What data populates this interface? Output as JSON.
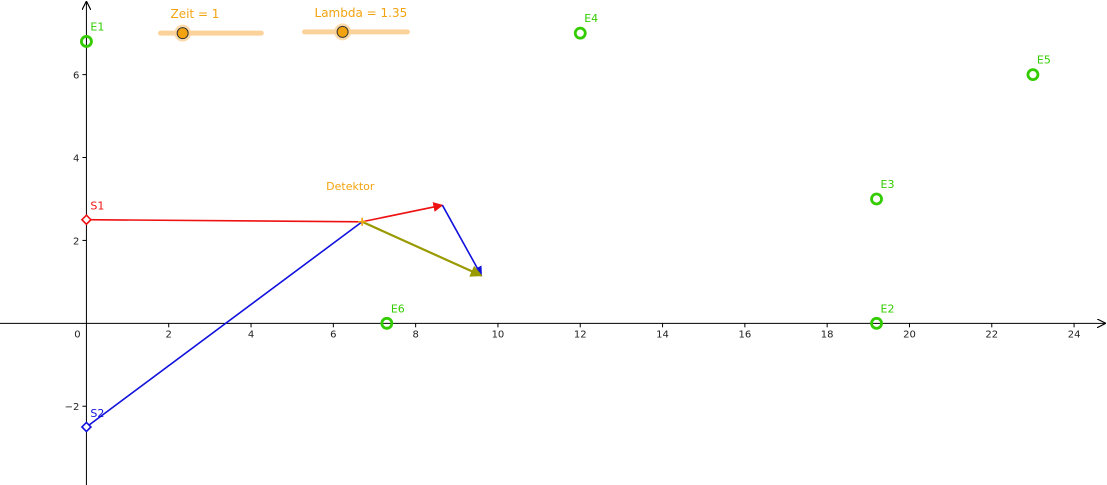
{
  "axes": {
    "x_range": [
      -2.1,
      24.8
    ],
    "y_range": [
      -3.9,
      7.8
    ],
    "x_ticks": [
      {
        "value": 0,
        "label": "0"
      },
      {
        "value": 2,
        "label": "2"
      },
      {
        "value": 4,
        "label": "4"
      },
      {
        "value": 6,
        "label": "6"
      },
      {
        "value": 8,
        "label": "8"
      },
      {
        "value": 10,
        "label": "10"
      },
      {
        "value": 12,
        "label": "12"
      },
      {
        "value": 14,
        "label": "14"
      },
      {
        "value": 16,
        "label": "16"
      },
      {
        "value": 18,
        "label": "18"
      },
      {
        "value": 20,
        "label": "20"
      },
      {
        "value": 22,
        "label": "22"
      },
      {
        "value": 24,
        "label": "24"
      }
    ],
    "y_ticks": [
      {
        "value": -2,
        "label": "−2"
      },
      {
        "value": 2,
        "label": "2"
      },
      {
        "value": 4,
        "label": "4"
      },
      {
        "value": 6,
        "label": "6"
      }
    ],
    "axis_color": "#000000"
  },
  "sliders": [
    {
      "id": "zeit",
      "label": "Zeit = 1",
      "x_start": 1.8,
      "x_end": 4.25,
      "y": 7.0,
      "fraction": 0.22,
      "color": "#f3a30f",
      "track_color": "#fbd39a"
    },
    {
      "id": "lambda",
      "label": "Lambda = 1.35",
      "x_start": 5.3,
      "x_end": 7.8,
      "y": 7.03,
      "fraction": 0.37,
      "color": "#f3a30f",
      "track_color": "#fbd39a"
    }
  ],
  "receivers": [
    {
      "name": "E1",
      "x": 0.0,
      "y": 6.8
    },
    {
      "name": "E4",
      "x": 12.0,
      "y": 7.0
    },
    {
      "name": "E5",
      "x": 23.0,
      "y": 6.0
    },
    {
      "name": "E3",
      "x": 19.2,
      "y": 3.0
    },
    {
      "name": "E2",
      "x": 19.2,
      "y": 0.0
    },
    {
      "name": "E6",
      "x": 7.3,
      "y": 0.0
    }
  ],
  "receiver_color": "#33cc00",
  "sources": [
    {
      "name": "S1",
      "x": 0.0,
      "y": 2.5,
      "color": "#ee1111"
    },
    {
      "name": "S2",
      "x": 0.0,
      "y": -2.5,
      "color": "#1111dd"
    }
  ],
  "detector": {
    "name": "Detektor",
    "x": 6.7,
    "y": 2.45,
    "color": "#f3a30f"
  },
  "segments": [
    {
      "id": "s1-line",
      "x1": 0.0,
      "y1": 2.5,
      "x2": 6.7,
      "y2": 2.45,
      "color": "#ee1111",
      "arrow": false
    },
    {
      "id": "s2-line",
      "x1": 0.0,
      "y1": -2.5,
      "x2": 6.7,
      "y2": 2.45,
      "color": "#1111dd",
      "arrow": false
    },
    {
      "id": "red-vector",
      "x1": 6.7,
      "y1": 2.45,
      "x2": 8.65,
      "y2": 2.85,
      "color": "#ee1111",
      "arrow": true
    },
    {
      "id": "blue-vector",
      "x1": 8.65,
      "y1": 2.85,
      "x2": 9.6,
      "y2": 1.15,
      "color": "#1111dd",
      "arrow": true
    },
    {
      "id": "resultant-vector",
      "x1": 6.7,
      "y1": 2.45,
      "x2": 9.6,
      "y2": 1.15,
      "color": "#999900",
      "arrow": true
    }
  ]
}
